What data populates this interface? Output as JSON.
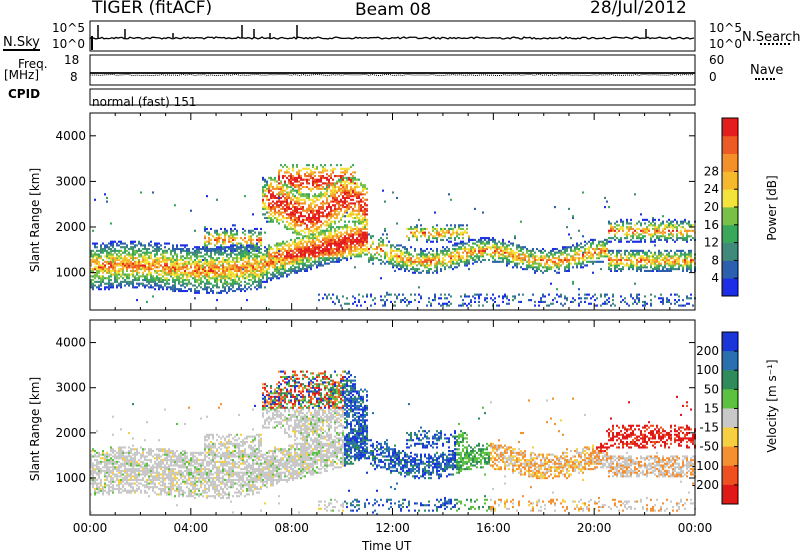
{
  "header": {
    "title": "TIGER (fitACF)",
    "beam": "Beam 08",
    "date": "28/Jul/2012"
  },
  "strips": {
    "nsky_label": "N.Sky",
    "nsearch_label": "N.Search",
    "count_ticks_left": [
      "10^5",
      "10^0"
    ],
    "count_ticks_right": [
      "10^5",
      "10^0"
    ],
    "freq_label": "Freq.",
    "freq_unit": "[MHz]",
    "freq_ticks": [
      "18",
      "8"
    ],
    "nave_label": "Nave",
    "nave_ticks": [
      "60",
      "0"
    ],
    "cpid_label": "CPID",
    "cpid_value": "normal (fast) 151"
  },
  "chart_data": [
    {
      "type": "heatmap",
      "title": "",
      "xlabel": "",
      "ylabel": "Slant Range [km]",
      "y_ticks": [
        "1000",
        "2000",
        "3000",
        "4000"
      ],
      "ylim": [
        180,
        4500
      ],
      "colorbar": {
        "label": "Power [dB]",
        "ticks": [
          "4",
          "8",
          "12",
          "16",
          "20",
          "24",
          "28"
        ],
        "colors": [
          "#1c2fe6",
          "#2c5fae",
          "#3f8a7a",
          "#3aa85a",
          "#78c048",
          "#f3e33a",
          "#f6b82d",
          "#f4902a",
          "#ee5a23",
          "#e41e1e"
        ]
      },
      "echo_bands": [
        {
          "x": [
            "00:00",
            "07:00"
          ],
          "range_km": [
            800,
            2100
          ],
          "level": "moderate-strong"
        },
        {
          "x": [
            "07:00",
            "11:00"
          ],
          "range_km": [
            1000,
            3500
          ],
          "level": "strong"
        },
        {
          "x": [
            "11:00",
            "24:00"
          ],
          "range_km": [
            1000,
            2200
          ],
          "level": "patchy"
        }
      ]
    },
    {
      "type": "heatmap",
      "title": "",
      "xlabel": "Time UT",
      "ylabel": "Slant Range [km]",
      "x_ticks": [
        "00:00",
        "04:00",
        "08:00",
        "12:00",
        "16:00",
        "20:00",
        "00:00"
      ],
      "y_ticks": [
        "1000",
        "2000",
        "3000",
        "4000"
      ],
      "ylim": [
        180,
        4500
      ],
      "colorbar": {
        "label": "Velocity [m s⁻¹]",
        "ticks": [
          "200",
          "100",
          "50",
          "15",
          "-15",
          "-50",
          "-100",
          "-200"
        ],
        "colors": [
          "#1a35d8",
          "#2a6fb0",
          "#2f8c5a",
          "#5cc040",
          "#c8c8c8",
          "#f6d040",
          "#f49030",
          "#ee5020",
          "#e01818"
        ]
      },
      "echo_bands": [
        {
          "x": [
            "00:00",
            "10:00"
          ],
          "range_km": [
            800,
            2100
          ],
          "velocity": "near zero (ground scatter)"
        },
        {
          "x": [
            "10:00",
            "14:00"
          ],
          "range_km": [
            1200,
            2000
          ],
          "velocity": "positive (blue)"
        },
        {
          "x": [
            "16:00",
            "20:00"
          ],
          "range_km": [
            1000,
            1400
          ],
          "velocity": "negative (orange)"
        },
        {
          "x": [
            "20:00",
            "22:00"
          ],
          "range_km": [
            1500,
            2100
          ],
          "velocity": "negative (red)"
        }
      ]
    }
  ]
}
